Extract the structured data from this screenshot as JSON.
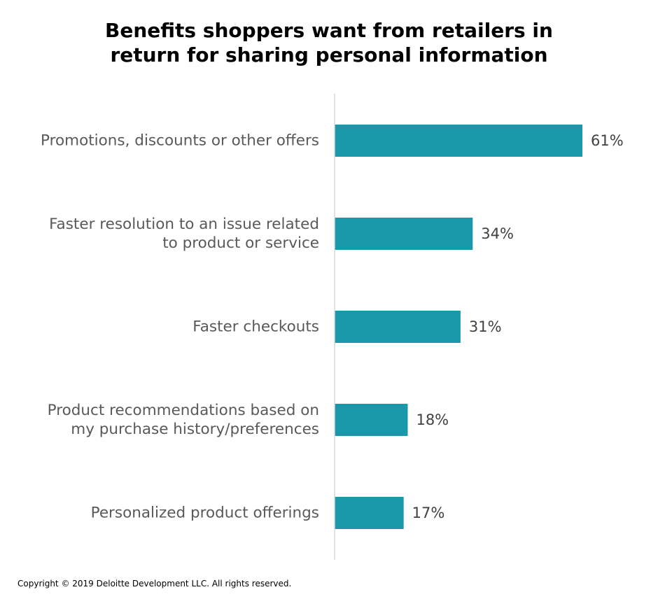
{
  "chart_data": {
    "type": "bar",
    "orientation": "horizontal",
    "title_lines": [
      "Benefits shoppers want from retailers in",
      "return for sharing personal information"
    ],
    "categories": [
      [
        "Promotions, discounts or other offers"
      ],
      [
        "Faster resolution to an issue related",
        "to product or service"
      ],
      [
        "Faster checkouts"
      ],
      [
        "Product recommendations based on",
        "my purchase history/preferences"
      ],
      [
        "Personalized product offerings"
      ]
    ],
    "values": [
      61,
      34,
      31,
      18,
      17
    ],
    "value_labels": [
      "61%",
      "34%",
      "31%",
      "18%",
      "17%"
    ],
    "unit": "%",
    "xlim": [
      0,
      70
    ],
    "grid": false,
    "legend": "none"
  },
  "colors": {
    "bar": "#1a97a8",
    "axis_line": "#d9d9d9",
    "category_text": "#595959",
    "value_text": "#404040"
  },
  "footer": {
    "copyright": "Copyright © 2019 Deloitte Development LLC. All rights reserved."
  }
}
